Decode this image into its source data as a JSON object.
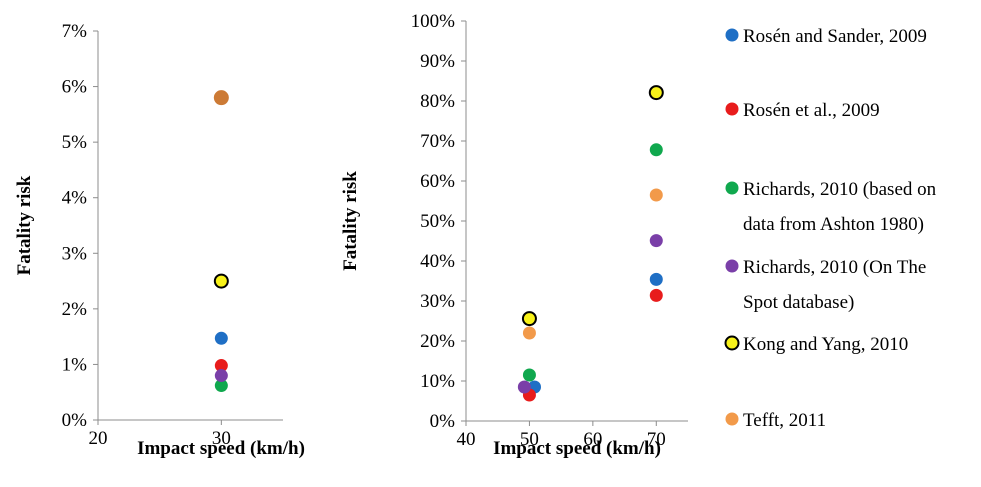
{
  "legend": [
    {
      "label_lines": [
        "Rosén and Sander, 2009"
      ],
      "color": "#1f6fc5"
    },
    {
      "label_lines": [
        "Rosén et al., 2009"
      ],
      "color": "#e81c1c"
    },
    {
      "label_lines": [
        "Richards, 2010 (based on",
        "data from Ashton 1980)"
      ],
      "color": "#10a84e"
    },
    {
      "label_lines": [
        "Richards, 2010 (On The",
        "Spot database)"
      ],
      "color": "#7a3fa8"
    },
    {
      "label_lines": [
        "Kong and Yang, 2010"
      ],
      "color": "#f8f21a",
      "outline": "#000000"
    },
    {
      "label_lines": [
        "Tefft, 2011"
      ],
      "color": "#f29a4a"
    }
  ],
  "chart_data": [
    {
      "type": "scatter",
      "xlabel": "Impact speed (km/h)",
      "ylabel": "Fatality risk",
      "xlim": [
        20,
        35
      ],
      "ylim": [
        0,
        0.07
      ],
      "xticks": [
        20,
        30
      ],
      "xtick_labels": [
        "20",
        "30"
      ],
      "yticks": [
        0,
        0.01,
        0.02,
        0.03,
        0.04,
        0.05,
        0.06,
        0.07
      ],
      "ytick_labels": [
        "0%",
        "1%",
        "2%",
        "3%",
        "4%",
        "5%",
        "6%",
        "7%"
      ],
      "grid": false,
      "series": [
        {
          "name": "Rosén and Sander, 2009",
          "color": "#1f6fc5",
          "points": [
            {
              "x": 30,
              "y": 0.0147
            }
          ]
        },
        {
          "name": "Rosén et al., 2009",
          "color": "#e81c1c",
          "points": [
            {
              "x": 30,
              "y": 0.0098
            }
          ]
        },
        {
          "name": "Richards, 2010 (based on data from Ashton 1980)",
          "color": "#10a84e",
          "points": [
            {
              "x": 30,
              "y": 0.0062
            }
          ]
        },
        {
          "name": "Richards, 2010 (On The Spot database)",
          "color": "#7a3fa8",
          "points": [
            {
              "x": 30,
              "y": 0.008
            }
          ]
        },
        {
          "name": "Kong and Yang, 2010",
          "color": "#f8f21a",
          "outline": "#000000",
          "points": [
            {
              "x": 30,
              "y": 0.025
            }
          ]
        },
        {
          "name": "Tefft, 2011",
          "color": "#cc7a35",
          "points": [
            {
              "x": 30,
              "y": 0.058
            }
          ]
        }
      ]
    },
    {
      "type": "scatter",
      "xlabel": "Impact speed (km/h)",
      "ylabel": "Fatality risk",
      "xlim": [
        40,
        75
      ],
      "ylim": [
        0,
        1.0
      ],
      "xticks": [
        40,
        50,
        60,
        70
      ],
      "xtick_labels": [
        "40",
        "50",
        "60",
        "70"
      ],
      "yticks": [
        0,
        0.1,
        0.2,
        0.3,
        0.4,
        0.5,
        0.6,
        0.7,
        0.8,
        0.9,
        1.0
      ],
      "ytick_labels": [
        "0%",
        "10%",
        "20%",
        "30%",
        "40%",
        "50%",
        "60%",
        "70%",
        "80%",
        "90%",
        "100%"
      ],
      "grid": false,
      "series": [
        {
          "name": "Rosén and Sander, 2009",
          "color": "#1f6fc5",
          "points": [
            {
              "x": 50.8,
              "y": 0.085
            },
            {
              "x": 70,
              "y": 0.354
            }
          ]
        },
        {
          "name": "Rosén et al., 2009",
          "color": "#e81c1c",
          "points": [
            {
              "x": 50,
              "y": 0.065
            },
            {
              "x": 70,
              "y": 0.314
            }
          ]
        },
        {
          "name": "Richards, 2010 (based on data from Ashton 1980)",
          "color": "#10a84e",
          "points": [
            {
              "x": 50,
              "y": 0.115
            },
            {
              "x": 70,
              "y": 0.678
            }
          ]
        },
        {
          "name": "Richards, 2010 (On The Spot database)",
          "color": "#7a3fa8",
          "points": [
            {
              "x": 49.2,
              "y": 0.085
            },
            {
              "x": 70,
              "y": 0.451
            }
          ]
        },
        {
          "name": "Kong and Yang, 2010",
          "color": "#f8f21a",
          "outline": "#000000",
          "points": [
            {
              "x": 50,
              "y": 0.256
            },
            {
              "x": 70,
              "y": 0.821
            }
          ]
        },
        {
          "name": "Tefft, 2011",
          "color": "#f29a4a",
          "points": [
            {
              "x": 50,
              "y": 0.22
            },
            {
              "x": 70,
              "y": 0.565
            }
          ]
        }
      ]
    }
  ]
}
